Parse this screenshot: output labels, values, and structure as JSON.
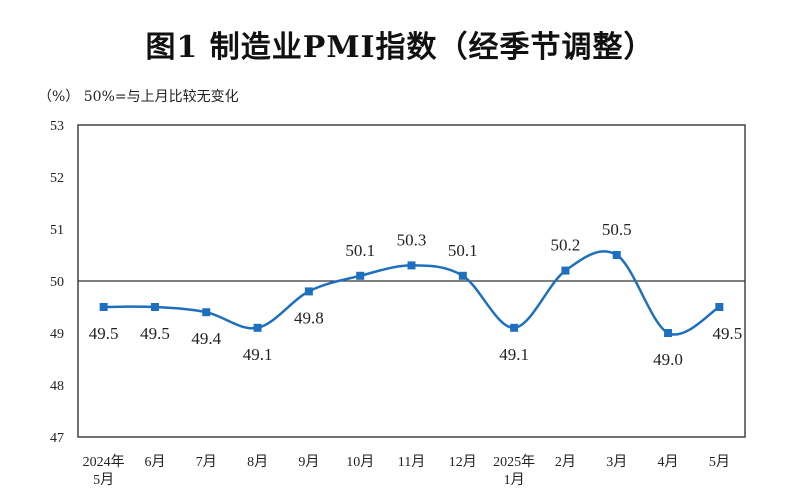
{
  "chart_data": {
    "type": "line",
    "title": "图1  制造业PMI指数（经季节调整）",
    "note": "（%）  50%=与上月比较无变化",
    "categories": [
      [
        "2024年",
        "5月"
      ],
      [
        "6月"
      ],
      [
        "7月"
      ],
      [
        "8月"
      ],
      [
        "9月"
      ],
      [
        "10月"
      ],
      [
        "11月"
      ],
      [
        "12月"
      ],
      [
        "2025年",
        "1月"
      ],
      [
        "2月"
      ],
      [
        "3月"
      ],
      [
        "4月"
      ],
      [
        "5月"
      ]
    ],
    "values": [
      49.5,
      49.5,
      49.4,
      49.1,
      49.8,
      50.1,
      50.3,
      50.1,
      49.1,
      50.2,
      50.5,
      49.0,
      49.5
    ],
    "data_labels": [
      "49.5",
      "49.5",
      "49.4",
      "49.1",
      "49.8",
      "50.1",
      "50.3",
      "50.1",
      "49.1",
      "50.2",
      "50.5",
      "49.0",
      "49.5"
    ],
    "ylim": [
      47,
      53
    ],
    "yticks": [
      "47",
      "48",
      "49",
      "50",
      "51",
      "52",
      "53"
    ],
    "reference_line": 50,
    "grid": false,
    "line_color": "#1f6fbf",
    "marker": "square"
  }
}
